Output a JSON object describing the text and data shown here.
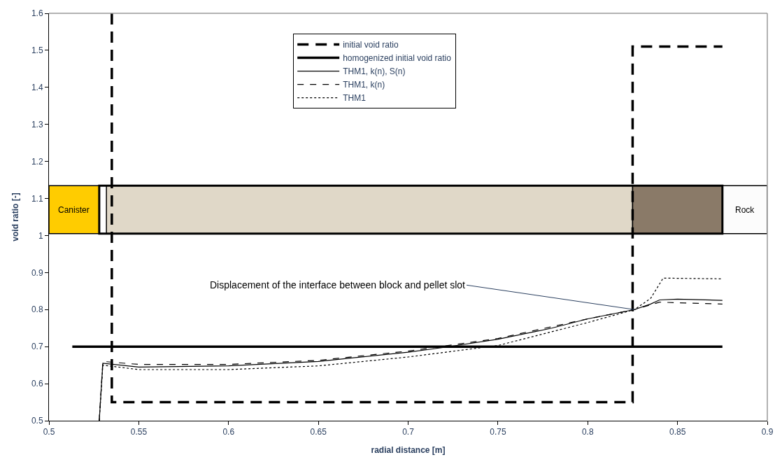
{
  "chart_data": {
    "type": "line",
    "xlabel": "radial distance [m]",
    "ylabel": "void ratio [-]",
    "xlim": [
      0.5,
      0.9
    ],
    "xticks": [
      0.5,
      0.55,
      0.6,
      0.65,
      0.7,
      0.75,
      0.8,
      0.85,
      0.9
    ],
    "ylim": [
      0.5,
      1.6
    ],
    "yticks": [
      0.5,
      0.6,
      0.7,
      0.8,
      0.9,
      1,
      1.1,
      1.2,
      1.3,
      1.4,
      1.5,
      1.6
    ],
    "grid": false,
    "legend": "top",
    "marker": "none",
    "series": [
      {
        "name": "initial void ratio",
        "color": "#000000",
        "line_style": "dashed",
        "x": [
          0.535,
          0.535,
          0.825,
          0.825,
          0.875
        ],
        "values": [
          1.6,
          0.55,
          0.55,
          1.51,
          1.51
        ]
      },
      {
        "name": "homogenized initial void ratio",
        "color": "#000000",
        "line_style": "solid",
        "x": [
          0.513,
          0.875
        ],
        "values": [
          0.7,
          0.7
        ]
      },
      {
        "name": "THM1, k(n), S(n)",
        "color": "#000000",
        "line_style": "solid",
        "x": [
          0.528,
          0.53,
          0.55,
          0.6,
          0.65,
          0.7,
          0.72,
          0.75,
          0.78,
          0.8,
          0.826,
          0.835,
          0.84,
          0.85,
          0.875
        ],
        "values": [
          0.5,
          0.655,
          0.645,
          0.648,
          0.66,
          0.685,
          0.698,
          0.72,
          0.75,
          0.775,
          0.8,
          0.815,
          0.826,
          0.828,
          0.825
        ]
      },
      {
        "name": "THM1, k(n)",
        "color": "#000000",
        "line_style": "dashed",
        "x": [
          0.528,
          0.53,
          0.55,
          0.6,
          0.65,
          0.7,
          0.75,
          0.8,
          0.826,
          0.84,
          0.875
        ],
        "values": [
          0.5,
          0.66,
          0.652,
          0.652,
          0.663,
          0.688,
          0.722,
          0.775,
          0.8,
          0.82,
          0.815
        ]
      },
      {
        "name": "THM1",
        "color": "#000000",
        "line_style": "dotted",
        "x": [
          0.528,
          0.53,
          0.55,
          0.6,
          0.65,
          0.7,
          0.75,
          0.8,
          0.826,
          0.835,
          0.842,
          0.875
        ],
        "values": [
          0.5,
          0.65,
          0.638,
          0.638,
          0.648,
          0.672,
          0.703,
          0.765,
          0.8,
          0.83,
          0.885,
          0.883
        ]
      }
    ],
    "bands": [
      {
        "axis": "x",
        "from": 0.5,
        "to": 0.528,
        "label": "Canister",
        "color": "#ffcc00"
      },
      {
        "axis": "x",
        "from": 0.532,
        "to": 0.825,
        "label": null,
        "color": "#e0d8c8"
      },
      {
        "axis": "x",
        "from": 0.825,
        "to": 0.875,
        "label": null,
        "color": "#8a7a68"
      },
      {
        "axis": "x",
        "from": 0.875,
        "to": 0.9,
        "label": "Rock",
        "color": "#fcfcfc"
      }
    ],
    "annotations": [
      {
        "text": "Displacement of the interface between block and pellet slot",
        "x": 0.826,
        "y": 0.8
      }
    ]
  }
}
